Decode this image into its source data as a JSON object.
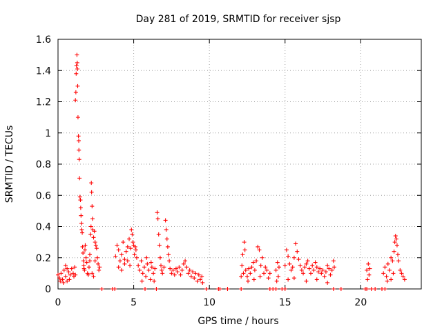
{
  "chart_data": {
    "type": "scatter",
    "title": "Day 281 of 2019, SRMTID for receiver sjsp",
    "xlabel": "GPS time / hours",
    "ylabel": "SRMTID / TECUs",
    "xlim": [
      0,
      24
    ],
    "ylim": [
      0,
      1.6
    ],
    "xticks": [
      0,
      5,
      10,
      15,
      20
    ],
    "yticks": [
      0,
      0.2,
      0.4,
      0.6,
      0.8,
      1,
      1.2,
      1.4,
      1.6
    ],
    "ytick_labels": [
      "0",
      "0.2",
      "0.4",
      "0.6",
      "0.8",
      "1",
      "1.2",
      "1.4",
      "1.6"
    ],
    "grid": true,
    "marker": "+",
    "color": "#ff0000",
    "series": [
      {
        "name": "SRMTID",
        "points": [
          [
            0.0,
            0.09
          ],
          [
            0.1,
            0.07
          ],
          [
            0.2,
            0.1
          ],
          [
            0.3,
            0.06
          ],
          [
            0.4,
            0.12
          ],
          [
            0.5,
            0.08
          ],
          [
            0.6,
            0.05
          ],
          [
            0.7,
            0.11
          ],
          [
            0.8,
            0.09
          ],
          [
            0.9,
            0.13
          ],
          [
            1.0,
            0.1
          ],
          [
            1.05,
            0.08
          ],
          [
            1.1,
            0.14
          ],
          [
            1.15,
            0.09
          ],
          [
            0.5,
            0.15
          ],
          [
            0.6,
            0.13
          ],
          [
            0.15,
            0.05
          ],
          [
            0.35,
            0.04
          ],
          [
            0.75,
            0.06
          ],
          [
            1.15,
            1.21
          ],
          [
            1.18,
            1.26
          ],
          [
            1.2,
            1.38
          ],
          [
            1.22,
            1.43
          ],
          [
            1.25,
            1.5
          ],
          [
            1.27,
            1.45
          ],
          [
            1.28,
            1.41
          ],
          [
            1.3,
            1.3
          ],
          [
            1.32,
            1.1
          ],
          [
            1.35,
            0.98
          ],
          [
            1.37,
            0.95
          ],
          [
            1.38,
            0.89
          ],
          [
            1.4,
            0.83
          ],
          [
            1.42,
            0.71
          ],
          [
            1.45,
            0.59
          ],
          [
            1.48,
            0.57
          ],
          [
            1.5,
            0.52
          ],
          [
            1.52,
            0.47
          ],
          [
            1.55,
            0.42
          ],
          [
            1.57,
            0.38
          ],
          [
            1.6,
            0.36
          ],
          [
            1.62,
            0.27
          ],
          [
            1.65,
            0.23
          ],
          [
            1.68,
            0.18
          ],
          [
            1.7,
            0.15
          ],
          [
            1.72,
            0.13
          ],
          [
            1.75,
            0.12
          ],
          [
            1.78,
            0.25
          ],
          [
            1.8,
            0.28
          ],
          [
            1.85,
            0.2
          ],
          [
            1.9,
            0.17
          ],
          [
            1.95,
            0.1
          ],
          [
            2.0,
            0.09
          ],
          [
            2.05,
            0.14
          ],
          [
            2.1,
            0.18
          ],
          [
            2.1,
            0.22
          ],
          [
            2.15,
            0.35
          ],
          [
            2.18,
            0.4
          ],
          [
            2.2,
            0.68
          ],
          [
            2.22,
            0.62
          ],
          [
            2.25,
            0.53
          ],
          [
            2.28,
            0.45
          ],
          [
            2.3,
            0.38
          ],
          [
            2.35,
            0.33
          ],
          [
            2.4,
            0.37
          ],
          [
            2.45,
            0.3
          ],
          [
            2.5,
            0.28
          ],
          [
            2.55,
            0.26
          ],
          [
            2.6,
            0.2
          ],
          [
            2.65,
            0.16
          ],
          [
            2.7,
            0.12
          ],
          [
            2.75,
            0.14
          ],
          [
            2.25,
            0.1
          ],
          [
            2.35,
            0.08
          ],
          [
            2.45,
            0.18
          ],
          [
            2.9,
            0.0
          ],
          [
            3.6,
            0.0
          ],
          [
            3.75,
            0.0
          ],
          [
            3.8,
            0.21
          ],
          [
            3.9,
            0.28
          ],
          [
            4.0,
            0.25
          ],
          [
            4.1,
            0.18
          ],
          [
            4.2,
            0.22
          ],
          [
            4.3,
            0.3
          ],
          [
            4.4,
            0.19
          ],
          [
            4.5,
            0.24
          ],
          [
            4.6,
            0.27
          ],
          [
            4.7,
            0.32
          ],
          [
            4.8,
            0.26
          ],
          [
            4.85,
            0.38
          ],
          [
            4.9,
            0.35
          ],
          [
            4.95,
            0.3
          ],
          [
            5.0,
            0.28
          ],
          [
            5.05,
            0.22
          ],
          [
            5.1,
            0.27
          ],
          [
            5.15,
            0.25
          ],
          [
            5.2,
            0.2
          ],
          [
            4.0,
            0.14
          ],
          [
            4.2,
            0.12
          ],
          [
            4.4,
            0.16
          ],
          [
            4.6,
            0.18
          ],
          [
            4.75,
            0.15
          ],
          [
            5.3,
            0.15
          ],
          [
            5.4,
            0.12
          ],
          [
            5.5,
            0.18
          ],
          [
            5.6,
            0.1
          ],
          [
            5.7,
            0.14
          ],
          [
            5.8,
            0.08
          ],
          [
            5.9,
            0.16
          ],
          [
            6.0,
            0.12
          ],
          [
            6.1,
            0.06
          ],
          [
            6.2,
            0.14
          ],
          [
            6.3,
            0.1
          ],
          [
            6.4,
            0.13
          ],
          [
            5.55,
            0.05
          ],
          [
            5.85,
            0.2
          ],
          [
            6.15,
            0.17
          ],
          [
            6.35,
            0.05
          ],
          [
            5.75,
            0.0
          ],
          [
            6.5,
            0.0
          ],
          [
            6.55,
            0.49
          ],
          [
            6.6,
            0.45
          ],
          [
            6.65,
            0.35
          ],
          [
            6.7,
            0.28
          ],
          [
            6.75,
            0.2
          ],
          [
            6.8,
            0.15
          ],
          [
            6.85,
            0.12
          ],
          [
            6.9,
            0.1
          ],
          [
            7.0,
            0.14
          ],
          [
            7.1,
            0.44
          ],
          [
            7.15,
            0.38
          ],
          [
            7.2,
            0.32
          ],
          [
            7.25,
            0.27
          ],
          [
            7.3,
            0.22
          ],
          [
            7.35,
            0.18
          ],
          [
            7.4,
            0.13
          ],
          [
            7.5,
            0.1
          ],
          [
            7.6,
            0.12
          ],
          [
            7.7,
            0.09
          ],
          [
            7.8,
            0.13
          ],
          [
            7.9,
            0.11
          ],
          [
            8.0,
            0.14
          ],
          [
            8.1,
            0.09
          ],
          [
            8.2,
            0.12
          ],
          [
            8.3,
            0.16
          ],
          [
            8.4,
            0.18
          ],
          [
            8.5,
            0.14
          ],
          [
            8.6,
            0.1
          ],
          [
            8.7,
            0.12
          ],
          [
            8.8,
            0.08
          ],
          [
            8.9,
            0.11
          ],
          [
            9.0,
            0.07
          ],
          [
            9.1,
            0.1
          ],
          [
            9.2,
            0.05
          ],
          [
            9.3,
            0.09
          ],
          [
            9.4,
            0.06
          ],
          [
            9.5,
            0.08
          ],
          [
            9.55,
            0.04
          ],
          [
            9.8,
            0.0
          ],
          [
            10.6,
            0.0
          ],
          [
            10.7,
            0.0
          ],
          [
            11.2,
            0.0
          ],
          [
            12.1,
            0.0
          ],
          [
            12.1,
            0.08
          ],
          [
            12.15,
            0.15
          ],
          [
            12.2,
            0.22
          ],
          [
            12.25,
            0.1
          ],
          [
            12.3,
            0.3
          ],
          [
            12.35,
            0.25
          ],
          [
            12.4,
            0.12
          ],
          [
            12.5,
            0.08
          ],
          [
            12.6,
            0.13
          ],
          [
            12.7,
            0.1
          ],
          [
            12.8,
            0.14
          ],
          [
            12.9,
            0.17
          ],
          [
            13.0,
            0.12
          ],
          [
            13.1,
            0.18
          ],
          [
            13.2,
            0.27
          ],
          [
            13.3,
            0.25
          ],
          [
            13.4,
            0.15
          ],
          [
            13.5,
            0.2
          ],
          [
            13.6,
            0.1
          ],
          [
            13.7,
            0.14
          ],
          [
            13.8,
            0.12
          ],
          [
            13.9,
            0.07
          ],
          [
            14.0,
            0.1
          ],
          [
            12.55,
            0.05
          ],
          [
            12.95,
            0.06
          ],
          [
            13.35,
            0.08
          ],
          [
            14.0,
            0.0
          ],
          [
            14.2,
            0.0
          ],
          [
            14.4,
            0.0
          ],
          [
            14.8,
            0.0
          ],
          [
            15.0,
            0.0
          ],
          [
            14.4,
            0.12
          ],
          [
            14.5,
            0.17
          ],
          [
            14.6,
            0.14
          ],
          [
            14.55,
            0.08
          ],
          [
            14.45,
            0.05
          ],
          [
            15.0,
            0.15
          ],
          [
            15.1,
            0.25
          ],
          [
            15.2,
            0.21
          ],
          [
            15.3,
            0.16
          ],
          [
            15.4,
            0.12
          ],
          [
            15.5,
            0.14
          ],
          [
            15.6,
            0.2
          ],
          [
            15.7,
            0.29
          ],
          [
            15.8,
            0.24
          ],
          [
            15.9,
            0.19
          ],
          [
            16.0,
            0.15
          ],
          [
            16.1,
            0.12
          ],
          [
            16.2,
            0.1
          ],
          [
            16.3,
            0.14
          ],
          [
            16.4,
            0.16
          ],
          [
            16.5,
            0.18
          ],
          [
            16.6,
            0.13
          ],
          [
            16.7,
            0.1
          ],
          [
            16.8,
            0.15
          ],
          [
            16.9,
            0.12
          ],
          [
            17.0,
            0.17
          ],
          [
            17.1,
            0.14
          ],
          [
            17.2,
            0.11
          ],
          [
            17.3,
            0.13
          ],
          [
            17.4,
            0.1
          ],
          [
            17.5,
            0.12
          ],
          [
            17.6,
            0.08
          ],
          [
            17.7,
            0.11
          ],
          [
            17.8,
            0.15
          ],
          [
            17.9,
            0.13
          ],
          [
            18.0,
            0.09
          ],
          [
            18.1,
            0.12
          ],
          [
            18.2,
            0.18
          ],
          [
            18.25,
            0.14
          ],
          [
            15.2,
            0.06
          ],
          [
            15.6,
            0.07
          ],
          [
            16.4,
            0.05
          ],
          [
            17.1,
            0.06
          ],
          [
            17.8,
            0.04
          ],
          [
            18.2,
            0.0
          ],
          [
            18.7,
            0.0
          ],
          [
            20.3,
            0.0
          ],
          [
            20.4,
            0.0
          ],
          [
            20.7,
            0.0
          ],
          [
            20.95,
            0.0
          ],
          [
            21.4,
            0.0
          ],
          [
            21.6,
            0.0
          ],
          [
            20.4,
            0.12
          ],
          [
            20.5,
            0.16
          ],
          [
            20.6,
            0.13
          ],
          [
            20.55,
            0.09
          ],
          [
            20.45,
            0.06
          ],
          [
            21.5,
            0.1
          ],
          [
            21.6,
            0.14
          ],
          [
            21.7,
            0.08
          ],
          [
            21.8,
            0.16
          ],
          [
            21.9,
            0.12
          ],
          [
            22.0,
            0.2
          ],
          [
            22.1,
            0.18
          ],
          [
            22.2,
            0.24
          ],
          [
            22.25,
            0.3
          ],
          [
            22.3,
            0.34
          ],
          [
            22.35,
            0.32
          ],
          [
            22.4,
            0.28
          ],
          [
            22.45,
            0.22
          ],
          [
            22.5,
            0.18
          ],
          [
            22.6,
            0.12
          ],
          [
            22.7,
            0.1
          ],
          [
            22.8,
            0.08
          ],
          [
            22.9,
            0.06
          ],
          [
            22.0,
            0.06
          ],
          [
            21.75,
            0.05
          ],
          [
            22.15,
            0.1
          ]
        ]
      }
    ]
  }
}
